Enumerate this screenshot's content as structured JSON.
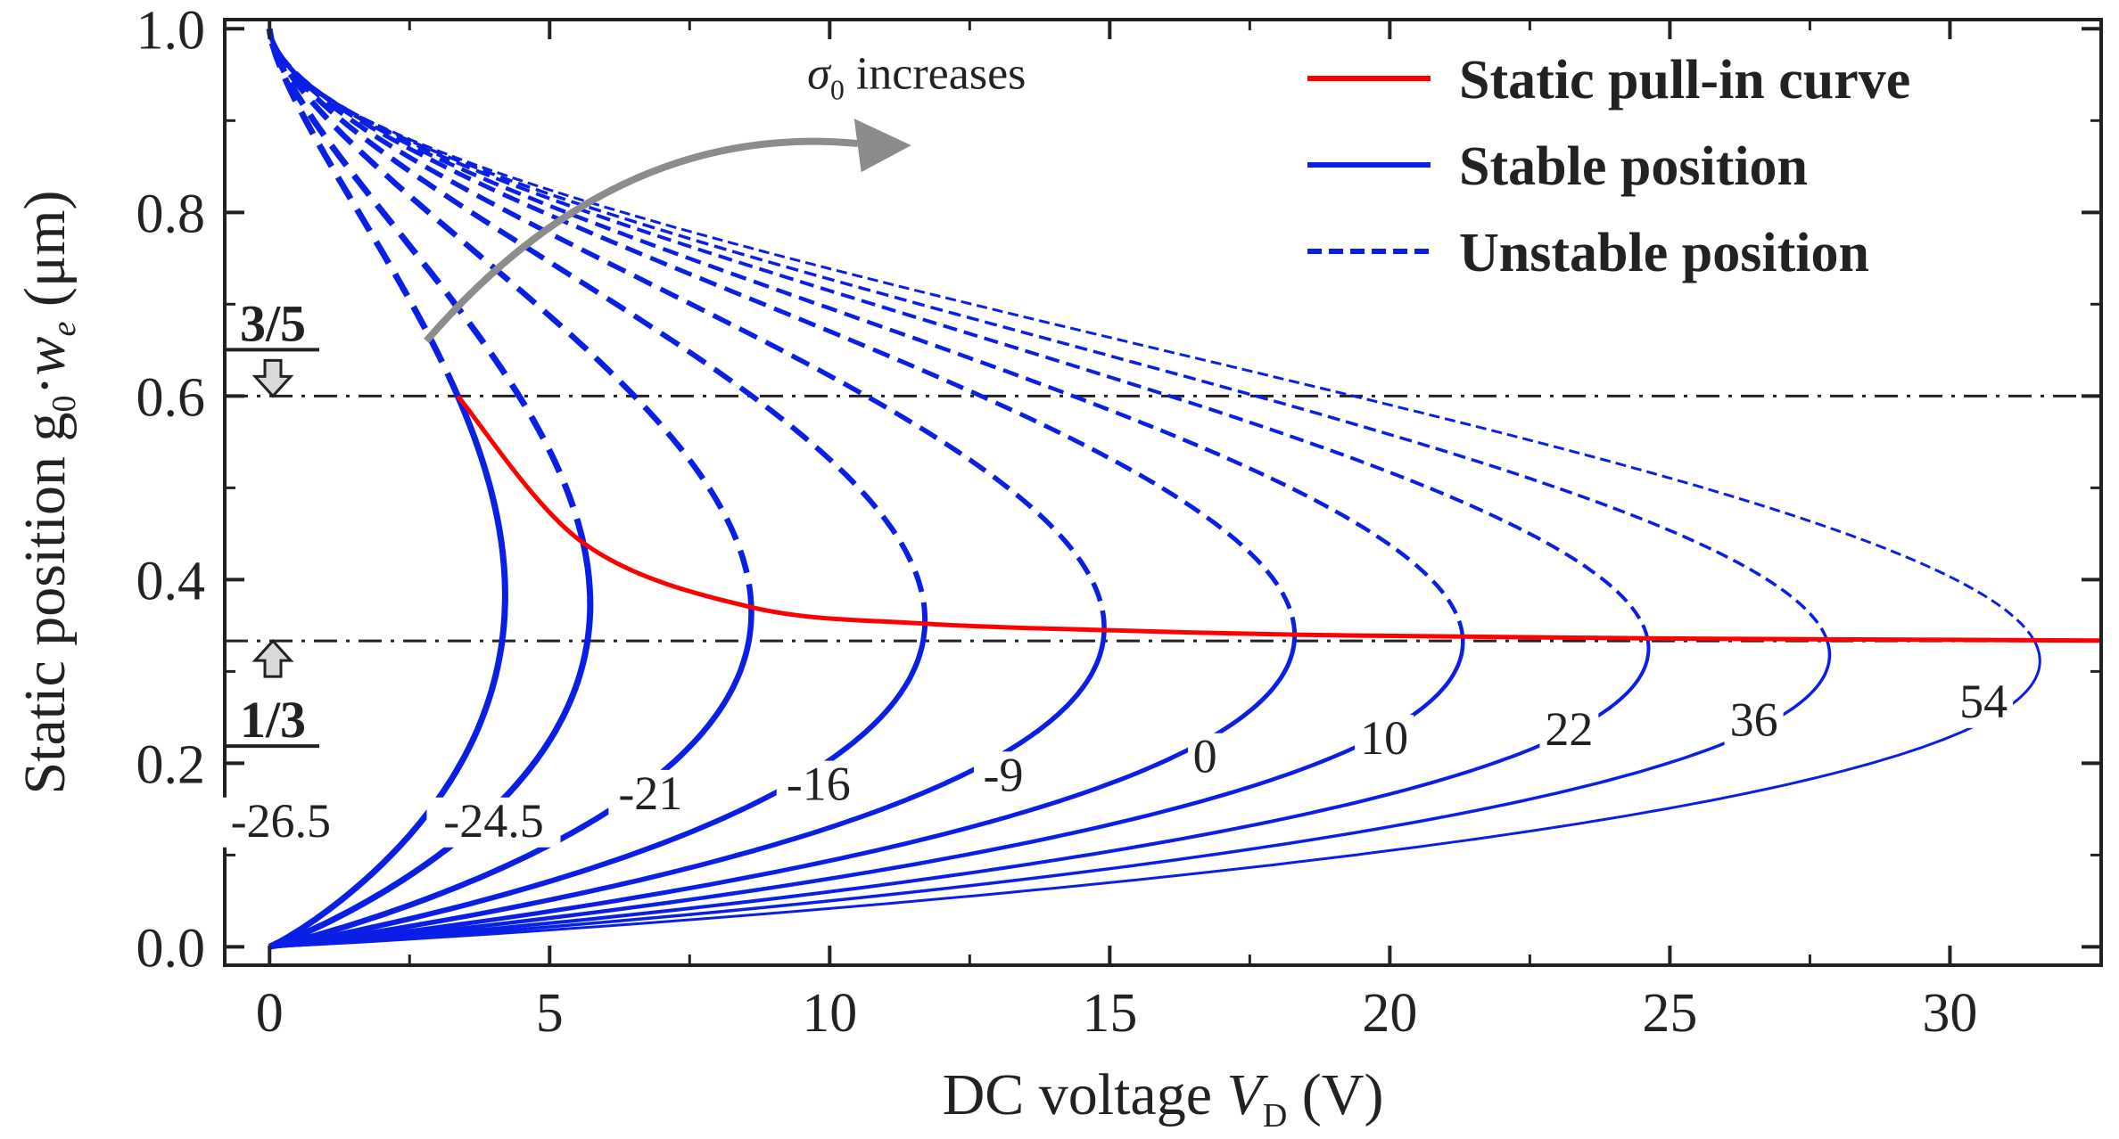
{
  "chart_data": {
    "type": "line",
    "xlabel": {
      "prefix": "DC voltage ",
      "var": "V",
      "sub": "D",
      "suffix": " (V)"
    },
    "ylabel": {
      "prefix": "Static position g",
      "sub0": "0",
      "mid": "·",
      "var": "w",
      "sub1": "e",
      "suffix": " (μm)"
    },
    "xlim": [
      -0.8,
      32.7
    ],
    "ylim": [
      -0.02,
      1.01
    ],
    "xticks": [
      0,
      5,
      10,
      15,
      20,
      25,
      30
    ],
    "yticks": [
      0.0,
      0.2,
      0.4,
      0.6,
      0.8,
      1.0
    ],
    "xtick_labels": [
      "0",
      "5",
      "10",
      "15",
      "20",
      "25",
      "30"
    ],
    "ytick_labels": [
      "0.0",
      "0.2",
      "0.4",
      "0.6",
      "0.8",
      "1.0"
    ],
    "reference_lines": [
      {
        "y": 0.6,
        "style": "dash-dot",
        "fraction_label": "3/5"
      },
      {
        "y": 0.3333,
        "style": "dash-dot",
        "fraction_label": "1/3"
      }
    ],
    "series": [
      {
        "sigma0": "-26.5",
        "label": "-26.5",
        "pull_in": [
          3.36,
          0.6
        ],
        "label_pos": [
          0.2,
          0.12
        ]
      },
      {
        "sigma0": "-24.5",
        "label": "-24.5",
        "pull_in": [
          5.6,
          0.44
        ],
        "label_pos": [
          4.0,
          0.12
        ]
      },
      {
        "sigma0": "-21",
        "label": "-21",
        "pull_in": [
          8.6,
          0.37
        ],
        "label_pos": [
          6.8,
          0.15
        ]
      },
      {
        "sigma0": "-16",
        "label": "-16",
        "pull_in": [
          11.7,
          0.352
        ],
        "label_pos": [
          9.8,
          0.16
        ]
      },
      {
        "sigma0": "-9",
        "label": "-9",
        "pull_in": [
          14.9,
          0.345
        ],
        "label_pos": [
          13.1,
          0.17
        ]
      },
      {
        "sigma0": "0",
        "label": "0",
        "pull_in": [
          18.3,
          0.34
        ],
        "label_pos": [
          16.7,
          0.19
        ]
      },
      {
        "sigma0": "10",
        "label": "10",
        "pull_in": [
          21.3,
          0.338
        ],
        "label_pos": [
          19.9,
          0.21
        ]
      },
      {
        "sigma0": "22",
        "label": "22",
        "pull_in": [
          24.6,
          0.336
        ],
        "label_pos": [
          23.2,
          0.22
        ]
      },
      {
        "sigma0": "36",
        "label": "36",
        "pull_in": [
          27.8,
          0.335
        ],
        "label_pos": [
          26.5,
          0.23
        ]
      },
      {
        "sigma0": "54",
        "label": "54",
        "pull_in": [
          31.5,
          0.334
        ],
        "label_pos": [
          30.6,
          0.25
        ]
      }
    ],
    "pull_in_curve": {
      "x": [
        3.36,
        5.6,
        8.6,
        11.7,
        14.9,
        18.3,
        21.3,
        24.6,
        27.8,
        31.5,
        32.7
      ],
      "y": [
        0.6,
        0.44,
        0.37,
        0.352,
        0.345,
        0.34,
        0.338,
        0.336,
        0.335,
        0.334,
        0.3336
      ]
    },
    "annotation": {
      "var": "σ",
      "sub": "0",
      "text": " increases"
    },
    "legend": {
      "position": "top-right",
      "items": [
        {
          "label": "Static pull-in curve",
          "color": "#ff0000",
          "style": "solid"
        },
        {
          "label": "Stable position",
          "color": "#0a1fe6",
          "style": "solid"
        },
        {
          "label": "Unstable position",
          "color": "#0a1fe6",
          "style": "dashed"
        }
      ]
    },
    "colors": {
      "stable": "#0a1fe6",
      "pull_in": "#ff0000",
      "arrow": "#8c8c8c",
      "refline": "#222222"
    }
  }
}
